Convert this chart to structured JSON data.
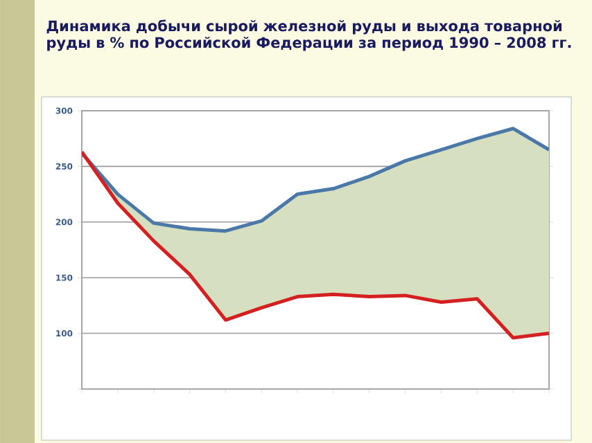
{
  "chart_data": {
    "type": "line",
    "title": "Динамика добычи сырой железной руды и выхода товарной руды  в % по Российской Федерации за период 1990 – 2008 гг.",
    "categories": [
      null,
      null,
      null,
      null,
      null,
      null,
      null,
      null,
      null,
      null,
      null,
      null,
      null,
      null
    ],
    "series": [
      {
        "color": "#4a78a8",
        "values": [
          262,
          225,
          199,
          194,
          192,
          201,
          225,
          230,
          241,
          255,
          265,
          275,
          284,
          265
        ],
        "lower": [
          263,
          217,
          183,
          153,
          112,
          123,
          133,
          135,
          133,
          134,
          128,
          131,
          96,
          100
        ],
        "upper": [
          262,
          225,
          199,
          194,
          192,
          201,
          225,
          230,
          241,
          255,
          265,
          275,
          284,
          265
        ]
      },
      {
        "color": "#d42020",
        "values": [
          263,
          217,
          183,
          153,
          112,
          123,
          133,
          135,
          133,
          134,
          128,
          131,
          96,
          100
        ]
      }
    ],
    "ylim": [
      50,
      300
    ],
    "yticks": [
      {
        "value": 50,
        "label": null
      },
      100,
      150,
      200,
      250,
      300
    ],
    "grid": "y"
  }
}
